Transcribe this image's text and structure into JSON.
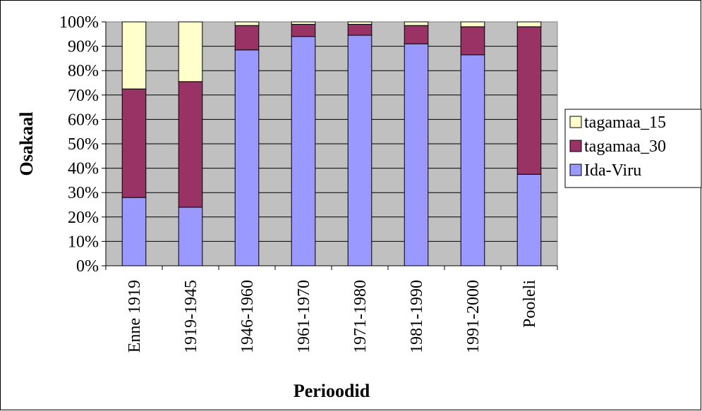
{
  "chart_data": {
    "type": "bar",
    "stacked": "percent",
    "title": "",
    "xlabel": "Perioodid",
    "ylabel": "Osakaal",
    "ylim": [
      0,
      100
    ],
    "yticks": [
      "0%",
      "10%",
      "20%",
      "30%",
      "40%",
      "50%",
      "60%",
      "70%",
      "80%",
      "90%",
      "100%"
    ],
    "categories": [
      "Enne 1919",
      "1919-1945",
      "1946-1960",
      "1961-1970",
      "1971-1980",
      "1981-1990",
      "1991-2000",
      "Pooleli"
    ],
    "series": [
      {
        "name": "Ida-Viru",
        "color": "#9999FF",
        "values": [
          28,
          24,
          88.5,
          94,
          94.5,
          91,
          86.5,
          37.5
        ]
      },
      {
        "name": "tagamaa_30",
        "color": "#993366",
        "values": [
          44.5,
          51.5,
          10,
          5,
          4.5,
          7.5,
          11.5,
          60.5
        ]
      },
      {
        "name": "tagamaa_15",
        "color": "#FFFFCC",
        "values": [
          27.5,
          24.5,
          1.5,
          1,
          1,
          1.5,
          2,
          2
        ]
      }
    ],
    "legend": {
      "position": "right",
      "order": [
        "tagamaa_15",
        "tagamaa_30",
        "Ida-Viru"
      ]
    },
    "grid": "horizontal",
    "plot_background": "#C0C0C0"
  }
}
